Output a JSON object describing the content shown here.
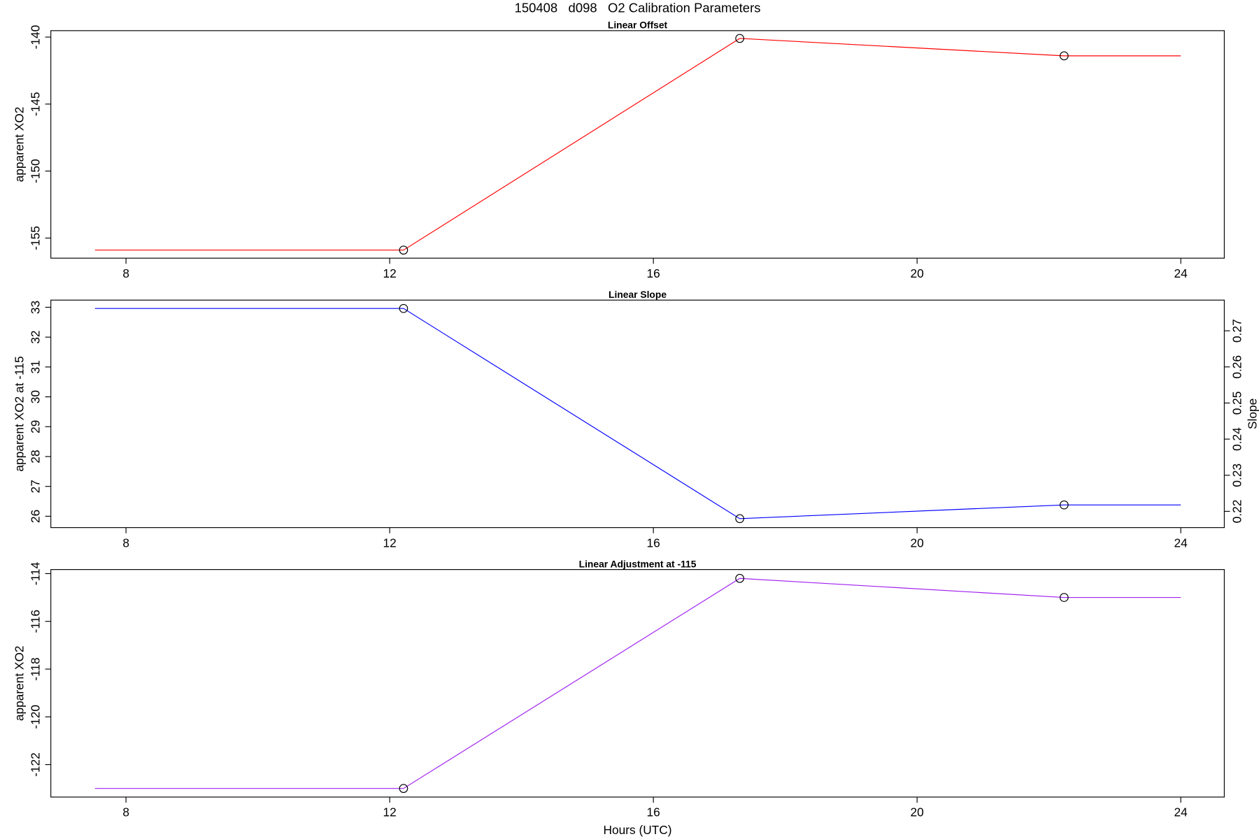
{
  "title": "150408   d098   O2 Calibration Parameters",
  "chart_data": [
    {
      "type": "line",
      "title": "Linear Offset",
      "ylabel": "apparent XO2",
      "x": [
        7.53,
        12.21,
        17.31,
        22.23,
        24
      ],
      "series": [
        {
          "color": "#ff0000",
          "values": [
            -155.9,
            -155.9,
            -140.1,
            -141.4,
            -141.4
          ],
          "markers": [
            false,
            true,
            true,
            true,
            false
          ]
        }
      ],
      "xlim": [
        6.86,
        24.66
      ],
      "xticks": [
        8,
        12,
        16,
        20,
        24
      ],
      "ylim": [
        -156.5,
        -139.52
      ],
      "yticks": [
        -155,
        -150,
        -145,
        -140
      ]
    },
    {
      "type": "line",
      "title": "Linear Slope",
      "ylabel": "apparent XO2 at -115",
      "y2label": "Slope",
      "x": [
        7.53,
        12.21,
        17.31,
        22.23,
        24
      ],
      "series": [
        {
          "color": "#0000ff",
          "values": [
            32.96,
            32.96,
            25.92,
            26.38,
            26.38
          ],
          "markers": [
            false,
            true,
            true,
            true,
            false
          ]
        }
      ],
      "xlim": [
        6.86,
        24.66
      ],
      "xticks": [
        8,
        12,
        16,
        20,
        24
      ],
      "ylim": [
        25.62,
        33.24
      ],
      "yticks": [
        26,
        27,
        28,
        29,
        30,
        31,
        32,
        33
      ],
      "y2lim": [
        0.2155,
        0.2785
      ],
      "y2ticks": [
        0.22,
        0.23,
        0.24,
        0.25,
        0.26,
        0.27
      ]
    },
    {
      "type": "line",
      "title": "Linear Adjustment at -115",
      "ylabel": "apparent XO2",
      "xlabel": "Hours (UTC)",
      "x": [
        7.53,
        12.21,
        17.31,
        22.23,
        24
      ],
      "series": [
        {
          "color": "#a020f0",
          "values": [
            -123,
            -123,
            -114.2,
            -115,
            -115
          ],
          "markers": [
            false,
            true,
            true,
            true,
            false
          ]
        }
      ],
      "xlim": [
        6.86,
        24.66
      ],
      "xticks": [
        8,
        12,
        16,
        20,
        24
      ],
      "ylim": [
        -123.36,
        -113.83
      ],
      "yticks": [
        -122,
        -120,
        -118,
        -116,
        -114
      ]
    }
  ]
}
